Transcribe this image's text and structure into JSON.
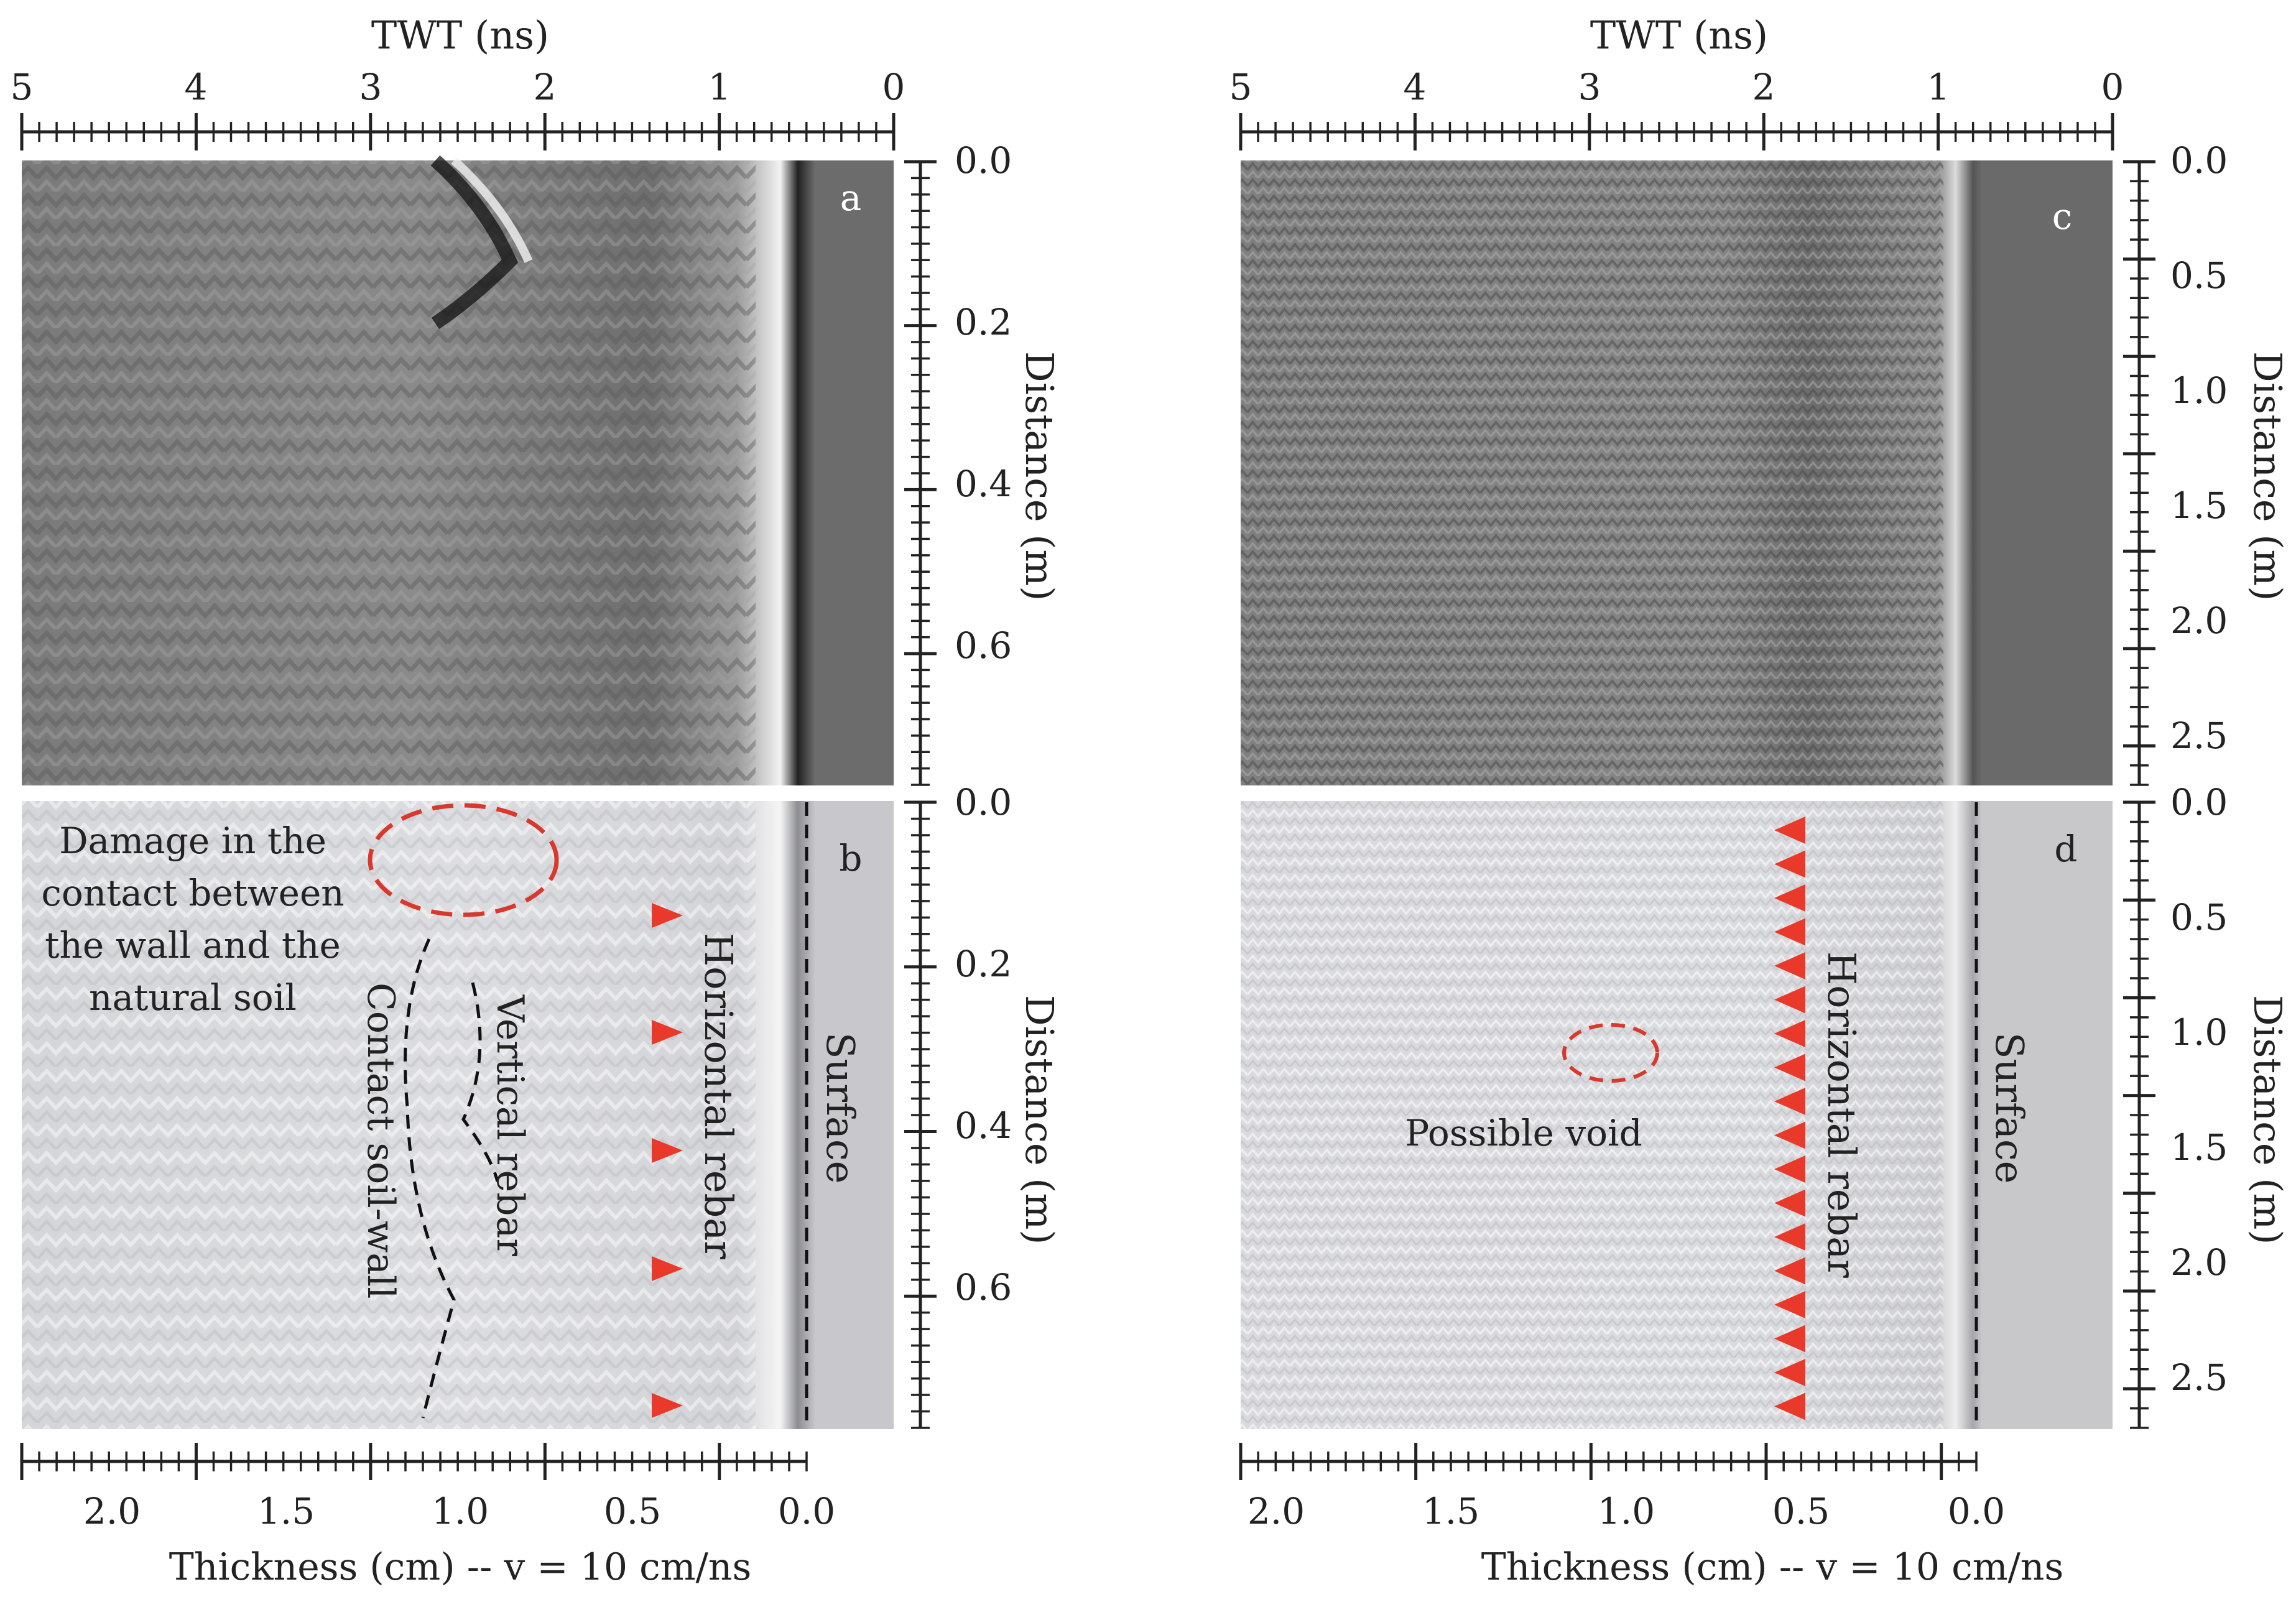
{
  "panels": {
    "left": {
      "top_axis_title": "TWT (ns)",
      "twt_ticks": [
        "5",
        "4",
        "3",
        "2",
        "1",
        "0"
      ],
      "dist_ticks_a": [
        "0.0",
        "0.2",
        "0.4",
        "0.6"
      ],
      "dist_ticks_b": [
        "0.0",
        "0.2",
        "0.4",
        "0.6"
      ],
      "dist_title": "Distance (m)",
      "thick_ticks": [
        "2.0",
        "1.5",
        "1.0",
        "0.5",
        "0.0"
      ],
      "bottom_axis_title": "Thickness (cm) -- v = 10 cm/ns",
      "label_a": "a",
      "label_b": "b",
      "annotations": {
        "damage_line1": "Damage in the",
        "damage_line2": "contact between",
        "damage_line3": "the wall and the",
        "damage_line4": "natural soil",
        "contact": "Contact soil-wall",
        "vertical_rebar": "Vertical rebar",
        "horizontal_rebar": "Horizontal rebar",
        "surface": "Surface"
      }
    },
    "right": {
      "top_axis_title": "TWT (ns)",
      "twt_ticks": [
        "5",
        "4",
        "3",
        "2",
        "1",
        "0"
      ],
      "dist_ticks_c": [
        "0.0",
        "0.5",
        "1.0",
        "1.5",
        "2.0",
        "2.5"
      ],
      "dist_ticks_d": [
        "0.0",
        "0.5",
        "1.0",
        "1.5",
        "2.0",
        "2.5"
      ],
      "dist_title": "Distance (m)",
      "thick_ticks": [
        "2.0",
        "1.5",
        "1.0",
        "0.5",
        "0.0"
      ],
      "bottom_axis_title": "Thickness (cm) -- v = 10 cm/ns",
      "label_c": "c",
      "label_d": "d",
      "annotations": {
        "possible_void": "Possible void",
        "horizontal_rebar": "Horizontal rebar",
        "surface": "Surface"
      }
    }
  },
  "colors": {
    "marker": "#e8392b",
    "dashed_red": "#d9382c",
    "gray_dark": "#6b6b6b",
    "gray_light": "#c9c9cb",
    "axis": "#222222"
  }
}
